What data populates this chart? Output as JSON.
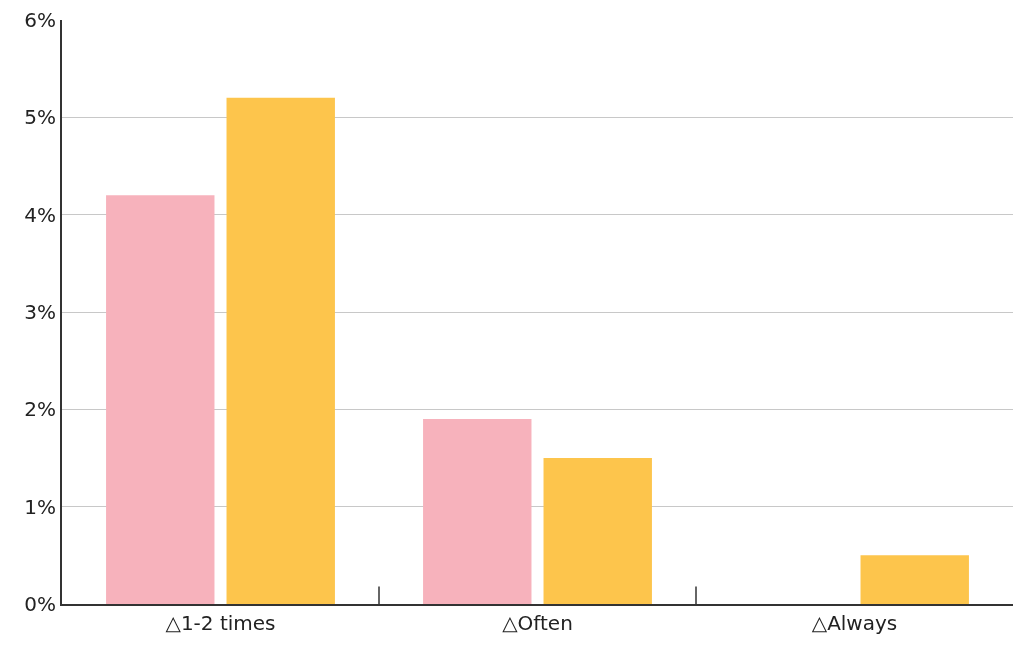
{
  "chart_data": {
    "type": "bar",
    "categories": [
      "△1-2 times",
      "△Often",
      "△Always"
    ],
    "series": [
      {
        "color": "#f7b2bc",
        "values": [
          4.2,
          1.9,
          0
        ]
      },
      {
        "color": "#fdc54c",
        "values": [
          5.2,
          1.5,
          0.5
        ]
      }
    ],
    "ylim": [
      0,
      6
    ],
    "yticks": [
      {
        "value": 0,
        "label": "0%"
      },
      {
        "value": 1,
        "label": "1%"
      },
      {
        "value": 2,
        "label": "2%"
      },
      {
        "value": 3,
        "label": "3%"
      },
      {
        "value": 4,
        "label": "4%"
      },
      {
        "value": 5,
        "label": "5%"
      },
      {
        "value": 6,
        "label": "6%"
      }
    ],
    "grid": "y"
  }
}
